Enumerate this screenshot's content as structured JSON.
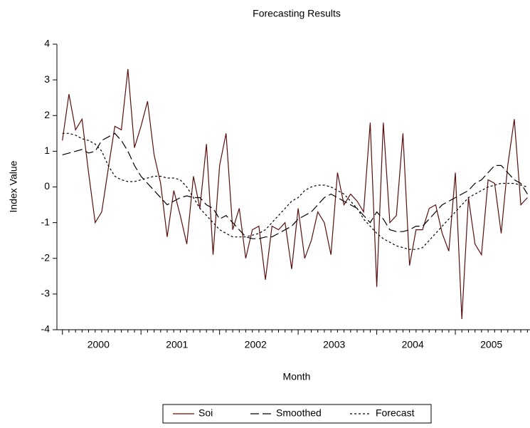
{
  "chart_data": {
    "type": "line",
    "title": "Forecasting Results",
    "x_label": "Month",
    "y_label": "Index Value",
    "x": [
      2000,
      2000.083,
      2000.167,
      2000.25,
      2000.333,
      2000.417,
      2000.5,
      2000.583,
      2000.667,
      2000.75,
      2000.833,
      2000.917,
      2001,
      2001.083,
      2001.167,
      2001.25,
      2001.333,
      2001.417,
      2001.5,
      2001.583,
      2001.667,
      2001.75,
      2001.833,
      2001.917,
      2002,
      2002.083,
      2002.167,
      2002.25,
      2002.333,
      2002.417,
      2002.5,
      2002.583,
      2002.667,
      2002.75,
      2002.833,
      2002.917,
      2003,
      2003.083,
      2003.167,
      2003.25,
      2003.333,
      2003.417,
      2003.5,
      2003.583,
      2003.667,
      2003.75,
      2003.833,
      2003.917,
      2004,
      2004.083,
      2004.167,
      2004.25,
      2004.333,
      2004.417,
      2004.5,
      2004.583,
      2004.667,
      2004.75,
      2004.833,
      2004.917,
      2005,
      2005.083,
      2005.167,
      2005.25,
      2005.333,
      2005.417,
      2005.5,
      2005.583,
      2005.667,
      2005.75,
      2005.833,
      2005.917
    ],
    "series": [
      {
        "name": "Soi",
        "color": "#5a0f0f",
        "style": "solid",
        "values": [
          1.3,
          2.6,
          1.6,
          1.9,
          0.4,
          -1.0,
          -0.7,
          0.5,
          1.7,
          1.6,
          3.3,
          1.1,
          1.7,
          2.4,
          0.9,
          0.1,
          -1.4,
          -0.1,
          -0.8,
          -1.6,
          0.3,
          -0.6,
          1.2,
          -1.9,
          0.6,
          1.5,
          -1.2,
          -0.6,
          -2.0,
          -1.2,
          -1.1,
          -2.6,
          -1.1,
          -1.2,
          -1.0,
          -2.3,
          -0.6,
          -2.0,
          -1.5,
          -0.7,
          -1.0,
          -1.9,
          0.4,
          -0.5,
          -0.2,
          -0.4,
          -0.7,
          1.8,
          -2.8,
          1.8,
          -1.0,
          -0.8,
          1.5,
          -2.2,
          -1.2,
          -1.2,
          -0.6,
          -0.5,
          -1.3,
          -1.8,
          0.4,
          -3.7,
          -0.3,
          -1.6,
          -1.9,
          0.2,
          0.1,
          -1.3,
          0.6,
          1.9,
          -0.5,
          -0.3
        ]
      },
      {
        "name": "Smoothed",
        "color": "#000000",
        "style": "long-dash",
        "values": [
          0.9,
          0.95,
          1.0,
          1.05,
          0.95,
          1.0,
          1.3,
          1.4,
          1.5,
          1.3,
          1.0,
          0.6,
          0.3,
          0.1,
          -0.1,
          -0.3,
          -0.5,
          -0.4,
          -0.3,
          -0.25,
          -0.3,
          -0.3,
          -0.5,
          -0.6,
          -0.9,
          -0.8,
          -1.0,
          -1.2,
          -1.4,
          -1.45,
          -1.45,
          -1.4,
          -1.4,
          -1.3,
          -1.2,
          -1.1,
          -0.9,
          -0.8,
          -0.7,
          -0.5,
          -0.3,
          -0.2,
          -0.3,
          -0.4,
          -0.5,
          -0.6,
          -0.8,
          -1.0,
          -0.7,
          -0.9,
          -1.2,
          -1.25,
          -1.25,
          -1.2,
          -1.1,
          -1.1,
          -0.9,
          -0.7,
          -0.5,
          -0.4,
          -0.3,
          -0.2,
          -0.1,
          0.1,
          0.2,
          0.4,
          0.6,
          0.6,
          0.4,
          0.2,
          0.1,
          -0.2
        ]
      },
      {
        "name": "Forecast",
        "color": "#000000",
        "style": "short-dash",
        "values": [
          1.5,
          1.5,
          1.45,
          1.35,
          1.3,
          1.2,
          1.0,
          0.6,
          0.3,
          0.2,
          0.15,
          0.15,
          0.2,
          0.25,
          0.3,
          0.3,
          0.25,
          0.25,
          0.2,
          0.0,
          -0.3,
          -0.6,
          -0.8,
          -1.0,
          -1.2,
          -1.3,
          -1.4,
          -1.4,
          -1.4,
          -1.35,
          -1.3,
          -1.2,
          -1.0,
          -0.8,
          -0.6,
          -0.4,
          -0.3,
          -0.1,
          0.0,
          0.05,
          0.05,
          0.0,
          -0.1,
          -0.2,
          -0.4,
          -0.6,
          -0.9,
          -1.1,
          -1.3,
          -1.45,
          -1.55,
          -1.65,
          -1.7,
          -1.75,
          -1.75,
          -1.7,
          -1.5,
          -1.3,
          -1.1,
          -0.9,
          -0.7,
          -0.5,
          -0.3,
          -0.2,
          -0.1,
          0.0,
          0.05,
          0.1,
          0.1,
          0.1,
          0.05,
          0.0
        ]
      }
    ],
    "xlim": [
      1999.93,
      2005.95
    ],
    "xticks": [
      {
        "value": 2000.458,
        "label": "2000"
      },
      {
        "value": 2001.458,
        "label": "2001"
      },
      {
        "value": 2002.458,
        "label": "2002"
      },
      {
        "value": 2003.458,
        "label": "2003"
      },
      {
        "value": 2004.458,
        "label": "2004"
      },
      {
        "value": 2005.458,
        "label": "2005"
      }
    ],
    "ylim": [
      -4,
      4
    ],
    "yticks": [
      -4,
      -3,
      -2,
      -1,
      0,
      1,
      2,
      3,
      4
    ],
    "grid": false,
    "legend": "bottom"
  }
}
